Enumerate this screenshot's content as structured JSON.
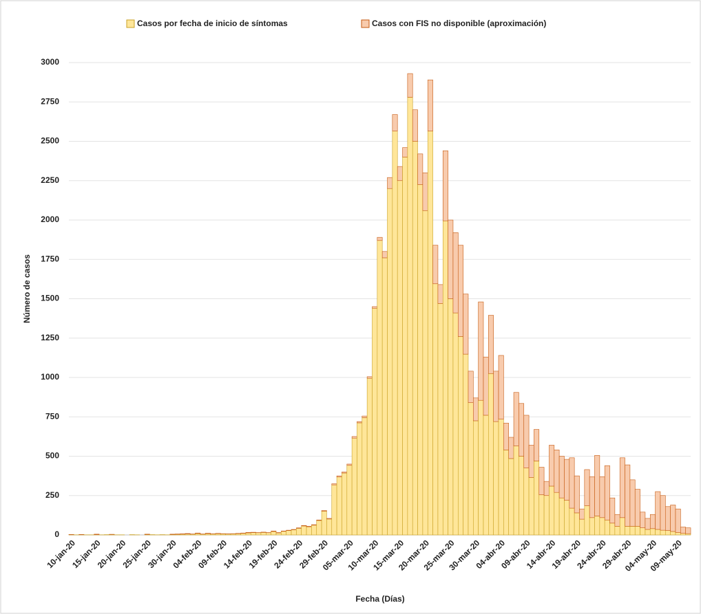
{
  "chart_data": {
    "type": "bar",
    "stacked": true,
    "y_label": "Número de casos",
    "x_label": "Fecha (Días)",
    "categories": [
      "10-jan-20",
      null,
      null,
      null,
      null,
      "15-jan-20",
      null,
      null,
      null,
      null,
      "20-jan-20",
      null,
      null,
      null,
      null,
      "25-jan-20",
      null,
      null,
      null,
      null,
      "30-jan-20",
      null,
      null,
      null,
      null,
      "04-feb-20",
      null,
      null,
      null,
      null,
      "09-feb-20",
      null,
      null,
      null,
      null,
      "14-feb-20",
      null,
      null,
      null,
      null,
      "19-feb-20",
      null,
      null,
      null,
      null,
      "24-feb-20",
      null,
      null,
      null,
      null,
      "29-feb-20",
      null,
      null,
      null,
      null,
      "05-mar-20",
      null,
      null,
      null,
      null,
      "10-mar-20",
      null,
      null,
      null,
      null,
      "15-mar-20",
      null,
      null,
      null,
      null,
      "20-mar-20",
      null,
      null,
      null,
      null,
      "25-mar-20",
      null,
      null,
      null,
      null,
      "30-mar-20",
      null,
      null,
      null,
      null,
      "04-abr-20",
      null,
      null,
      null,
      null,
      "09-abr-20",
      null,
      null,
      null,
      null,
      "14-abr-20",
      null,
      null,
      null,
      null,
      "19-abr-20",
      null,
      null,
      null,
      null,
      "24-abr-20",
      null,
      null,
      null,
      null,
      "29-abr-20",
      null,
      null,
      null,
      null,
      "04-may-20",
      null,
      null,
      null,
      null,
      "09-may-20",
      null,
      null
    ],
    "series": [
      {
        "name": "Casos por fecha de inicio de síntomas",
        "color": "#ffe699",
        "edge": "#c9a227",
        "values": [
          2,
          1,
          2,
          1,
          1,
          2,
          1,
          2,
          3,
          1,
          1,
          0,
          2,
          1,
          0,
          3,
          2,
          1,
          2,
          1,
          3,
          4,
          5,
          6,
          5,
          9,
          5,
          8,
          6,
          8,
          7,
          6,
          7,
          8,
          10,
          13,
          15,
          14,
          16,
          14,
          22,
          13,
          23,
          28,
          33,
          42,
          57,
          52,
          62,
          92,
          151,
          101,
          318,
          368,
          393,
          442,
          615,
          712,
          745,
          995,
          1440,
          1870,
          1760,
          2200,
          2565,
          2250,
          2400,
          2780,
          2500,
          2225,
          2060,
          2565,
          1595,
          1470,
          1995,
          1500,
          1410,
          1260,
          1148,
          840,
          725,
          855,
          760,
          1025,
          720,
          735,
          540,
          485,
          565,
          500,
          425,
          365,
          470,
          255,
          250,
          310,
          270,
          235,
          220,
          170,
          140,
          100,
          185,
          110,
          120,
          110,
          95,
          75,
          55,
          110,
          55,
          55,
          55,
          45,
          35,
          40,
          35,
          30,
          28,
          22,
          15,
          10,
          8
        ]
      },
      {
        "name": "Casos con FIS no disponible (aproximación)",
        "color": "#f8cbad",
        "edge": "#c55a11",
        "values": [
          1,
          0,
          1,
          0,
          0,
          3,
          0,
          0,
          1,
          0,
          0,
          0,
          0,
          0,
          0,
          2,
          0,
          0,
          0,
          0,
          2,
          2,
          2,
          3,
          1,
          3,
          1,
          3,
          1,
          2,
          1,
          1,
          1,
          2,
          2,
          3,
          2,
          1,
          2,
          1,
          3,
          2,
          2,
          2,
          2,
          3,
          3,
          3,
          3,
          3,
          4,
          4,
          7,
          7,
          7,
          8,
          10,
          8,
          10,
          10,
          10,
          20,
          40,
          70,
          105,
          90,
          60,
          150,
          200,
          195,
          240,
          325,
          245,
          120,
          445,
          500,
          510,
          580,
          382,
          200,
          145,
          625,
          370,
          370,
          320,
          405,
          170,
          135,
          340,
          335,
          335,
          205,
          200,
          175,
          90,
          260,
          270,
          265,
          260,
          320,
          235,
          65,
          230,
          260,
          385,
          260,
          345,
          160,
          75,
          380,
          390,
          295,
          235,
          100,
          70,
          90,
          240,
          220,
          152,
          168,
          150,
          40,
          37
        ]
      }
    ],
    "ylim": [
      0,
      3000
    ],
    "yticks": [
      0,
      250,
      500,
      750,
      1000,
      1250,
      1500,
      1750,
      2000,
      2250,
      2500,
      2750,
      3000
    ],
    "grid": true
  }
}
